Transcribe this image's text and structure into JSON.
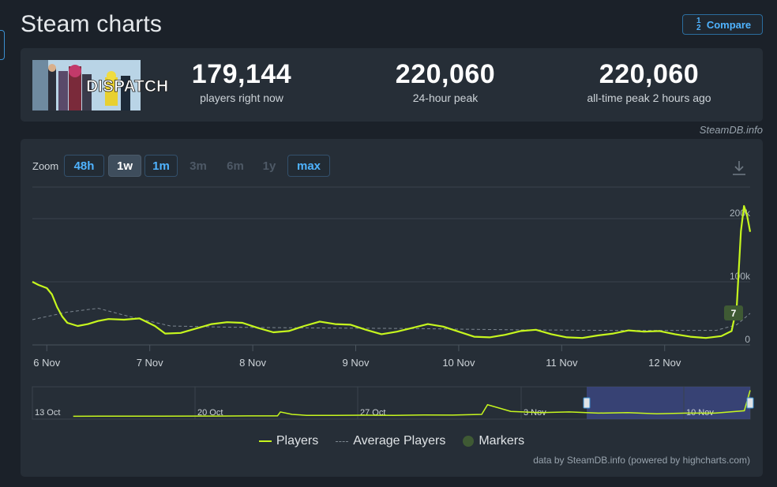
{
  "page": {
    "title": "Steam charts",
    "compare_label": "Compare",
    "compare_icon": "fraction-icon"
  },
  "stats": [
    {
      "value": "179,144",
      "label": "players right now"
    },
    {
      "value": "220,060",
      "label": "24-hour peak"
    },
    {
      "value": "220,060",
      "label": "all-time peak 2 hours ago"
    }
  ],
  "game_image_text": "DISPATCH",
  "credit_top": "SteamDB.info",
  "zoom": {
    "label": "Zoom",
    "buttons": [
      {
        "label": "48h",
        "state": "enabled"
      },
      {
        "label": "1w",
        "state": "active"
      },
      {
        "label": "1m",
        "state": "enabled"
      },
      {
        "label": "3m",
        "state": "disabled"
      },
      {
        "label": "6m",
        "state": "disabled"
      },
      {
        "label": "1y",
        "state": "disabled"
      },
      {
        "label": "max",
        "state": "enabled"
      }
    ]
  },
  "legend": {
    "players": "Players",
    "average": "Average Players",
    "markers": "Markers"
  },
  "credit_bottom": "data by SteamDB.info (powered by highcharts.com)",
  "chart_data": {
    "type": "line",
    "x_ticks": [
      "6 Nov",
      "7 Nov",
      "8 Nov",
      "9 Nov",
      "10 Nov",
      "11 Nov",
      "12 Nov"
    ],
    "y_ticks": [
      "0",
      "100k",
      "200k"
    ],
    "ylim": [
      0,
      250000
    ],
    "colors": {
      "players": "#c6f61e",
      "average": "#7d8791",
      "marker": "#3f5a34",
      "navigator_fill": "#3d4a8a"
    },
    "marker_label": "7",
    "series": [
      {
        "name": "Players",
        "x": [
          5.86,
          5.92,
          6.0,
          6.05,
          6.1,
          6.15,
          6.2,
          6.3,
          6.4,
          6.5,
          6.6,
          6.75,
          6.9,
          7.05,
          7.15,
          7.3,
          7.45,
          7.6,
          7.75,
          7.9,
          8.05,
          8.2,
          8.35,
          8.5,
          8.65,
          8.8,
          8.95,
          9.1,
          9.25,
          9.4,
          9.55,
          9.7,
          9.85,
          10.0,
          10.15,
          10.3,
          10.45,
          10.6,
          10.75,
          10.9,
          11.05,
          11.2,
          11.35,
          11.5,
          11.65,
          11.8,
          11.95,
          12.1,
          12.25,
          12.4,
          12.55,
          12.65,
          12.7,
          12.74,
          12.77,
          12.8,
          12.83
        ],
        "values": [
          100000,
          95000,
          90000,
          80000,
          60000,
          45000,
          35000,
          30000,
          33000,
          38000,
          41000,
          40000,
          42000,
          30000,
          18000,
          19000,
          26000,
          33000,
          36000,
          35000,
          27000,
          20000,
          22000,
          30000,
          37000,
          33000,
          32000,
          24000,
          17000,
          21000,
          27000,
          33000,
          29000,
          21000,
          13000,
          12000,
          16000,
          22000,
          24000,
          17000,
          12000,
          11000,
          15000,
          18000,
          23000,
          21000,
          22000,
          17000,
          13000,
          11000,
          14000,
          22000,
          60000,
          180000,
          220060,
          205000,
          179144
        ]
      },
      {
        "name": "Average Players",
        "x": [
          5.86,
          6.2,
          6.5,
          6.8,
          7.2,
          7.8,
          8.5,
          9.5,
          10.5,
          11.5,
          12.5,
          12.7,
          12.83
        ],
        "values": [
          40000,
          52000,
          58000,
          45000,
          30000,
          28000,
          27000,
          26000,
          24000,
          23000,
          23000,
          32000,
          50000
        ]
      }
    ],
    "navigator": {
      "labels": [
        "13 Oct",
        "20 Oct",
        "27 Oct",
        "3 Nov",
        "10 Nov"
      ],
      "x": [
        20,
        21.5,
        23,
        25,
        26,
        27,
        27.1,
        27.5,
        28,
        29,
        30,
        31,
        32,
        33,
        34,
        34.2,
        35,
        36,
        37,
        38,
        39,
        40,
        41,
        42,
        43,
        43.2
      ],
      "values": [
        4000,
        5000,
        5000,
        6000,
        7000,
        7000,
        40000,
        20000,
        12000,
        11000,
        13000,
        12000,
        15000,
        14000,
        20000,
        100000,
        45000,
        35000,
        40000,
        30000,
        35000,
        25000,
        30000,
        30000,
        50000,
        220060
      ]
    }
  }
}
